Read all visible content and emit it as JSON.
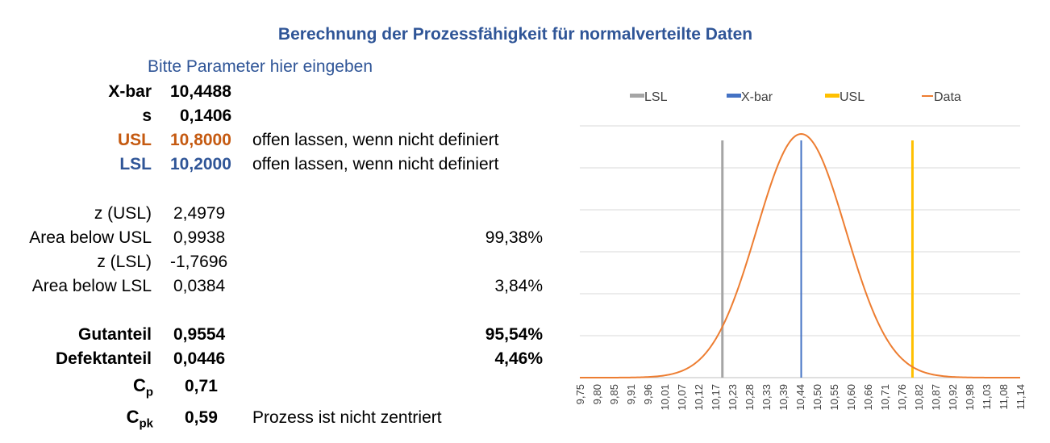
{
  "title": "Berechnung der Prozessfähigkeit für normalverteilte Daten",
  "subtitle": "Bitte Parameter hier eingeben",
  "params": {
    "xbar": {
      "label": "X-bar",
      "value": "10,4488"
    },
    "s": {
      "label": "s",
      "value": "0,1406"
    },
    "usl": {
      "label": "USL",
      "value": "10,8000",
      "note": "offen lassen, wenn nicht definiert"
    },
    "lsl": {
      "label": "LSL",
      "value": "10,2000",
      "note": "offen lassen, wenn nicht definiert"
    }
  },
  "stats": {
    "z_usl": {
      "label": "z (USL)",
      "value": "2,4979"
    },
    "area_usl": {
      "label": "Area below USL",
      "value": "0,9938",
      "pct": "99,38%"
    },
    "z_lsl": {
      "label": "z (LSL)",
      "value": "-1,7696"
    },
    "area_lsl": {
      "label": "Area below LSL",
      "value": "0,0384",
      "pct": "3,84%"
    }
  },
  "results": {
    "gut": {
      "label": "Gutanteil",
      "value": "0,9554",
      "pct": "95,54%"
    },
    "defekt": {
      "label": "Defektanteil",
      "value": "0,0446",
      "pct": "4,46%"
    },
    "cp": {
      "label_main": "C",
      "label_sub": "p",
      "value": "0,71"
    },
    "cpk": {
      "label_main": "C",
      "label_sub": "pk",
      "value": "0,59",
      "note": "Prozess ist nicht zentriert"
    }
  },
  "chart_data": {
    "type": "line",
    "legend": [
      {
        "name": "LSL",
        "color": "#a5a5a5",
        "marker": "bar"
      },
      {
        "name": "X-bar",
        "color": "#4472c4",
        "marker": "bar"
      },
      {
        "name": "USL",
        "color": "#ffc000",
        "marker": "bar"
      },
      {
        "name": "Data",
        "color": "#ed7d31",
        "marker": "line"
      }
    ],
    "legend_position": "top",
    "x_ticks": [
      "9,75",
      "9,80",
      "9,85",
      "9,91",
      "9,96",
      "10,01",
      "10,07",
      "10,12",
      "10,17",
      "10,23",
      "10,28",
      "10,33",
      "10,39",
      "10,44",
      "10,50",
      "10,55",
      "10,60",
      "10,66",
      "10,71",
      "10,76",
      "10,82",
      "10,87",
      "10,92",
      "10,98",
      "11,03",
      "11,08",
      "11,14"
    ],
    "x_range": [
      9.75,
      11.14
    ],
    "series": [
      {
        "name": "Data",
        "distribution": "normal",
        "mean": 10.4488,
        "sd": 0.1406,
        "color": "#ed7d31"
      }
    ],
    "vertical_lines": [
      {
        "name": "LSL",
        "x": 10.2,
        "color": "#a5a5a5"
      },
      {
        "name": "X-bar",
        "x": 10.4488,
        "color": "#4472c4"
      },
      {
        "name": "USL",
        "x": 10.8,
        "color": "#ffc000"
      }
    ],
    "gridlines": true
  }
}
